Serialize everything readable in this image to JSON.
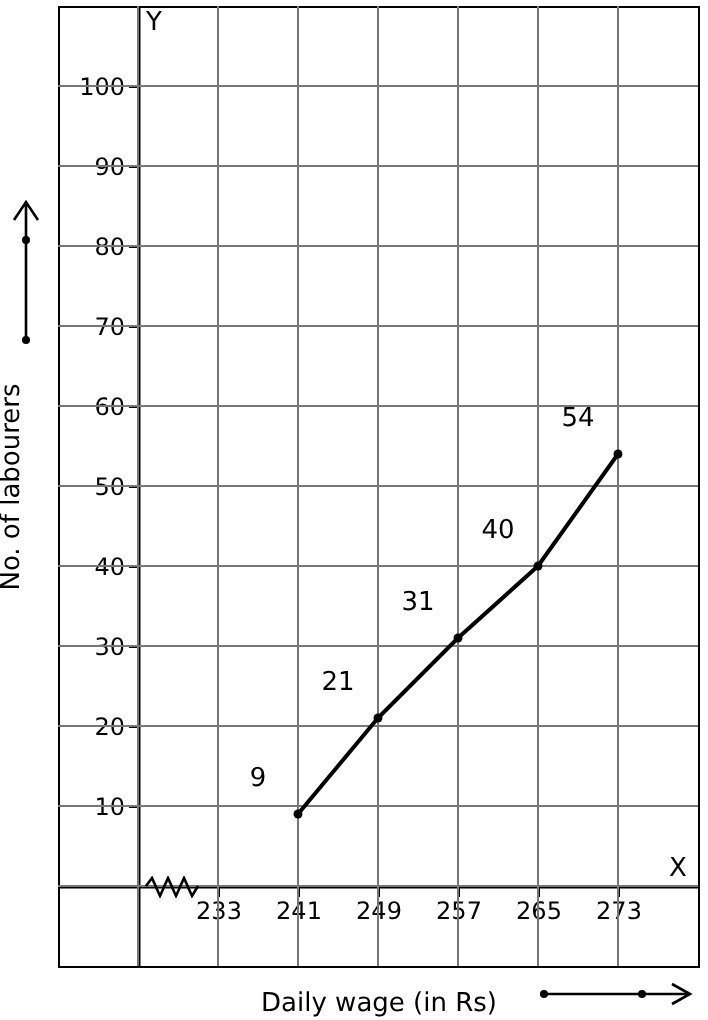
{
  "chart_data": {
    "type": "line",
    "xlabel": "Daily wage (in Rs)",
    "ylabel": "No. of labourers",
    "annotations": [
      "Y",
      "X"
    ],
    "x": [
      241,
      249,
      257,
      265,
      273
    ],
    "series": [
      {
        "color": "#000000",
        "values": [
          9,
          21,
          31,
          40,
          54
        ]
      }
    ],
    "xlim": [
      217,
      281
    ],
    "ylim": [
      -10,
      110
    ],
    "xticks": [
      {
        "value": 225,
        "label": null
      },
      233,
      241,
      249,
      257,
      265,
      273
    ],
    "yticks": [
      {
        "value": 0,
        "label": null
      },
      10,
      20,
      30,
      40,
      50,
      60,
      70,
      80,
      90,
      100
    ],
    "grid": true,
    "marker": "circle",
    "data_labels": true,
    "line_style": "solid"
  }
}
